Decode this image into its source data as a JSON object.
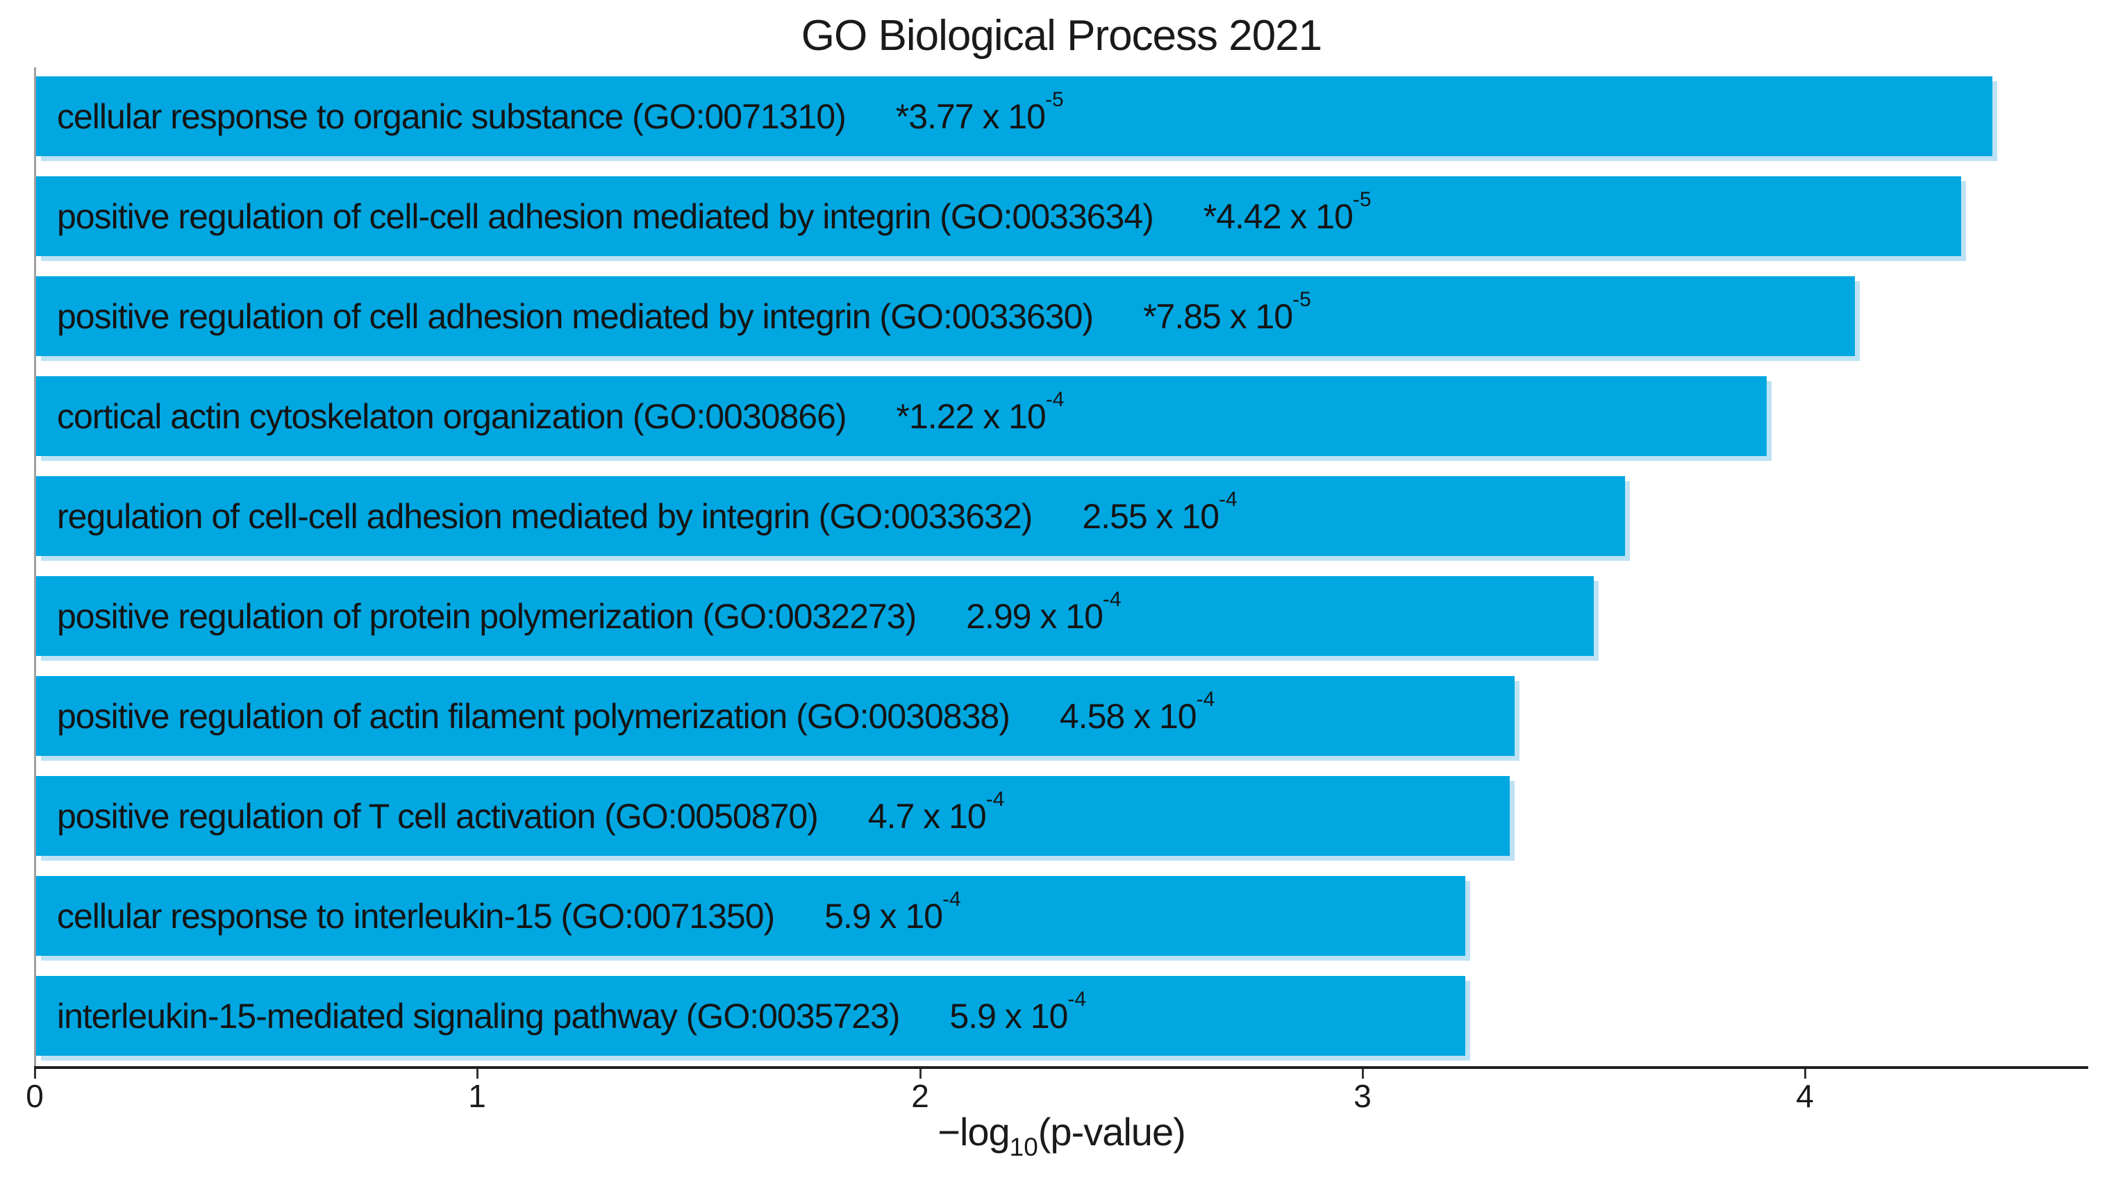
{
  "chart_data": {
    "type": "bar",
    "orientation": "horizontal",
    "title": "GO Biological Process 2021",
    "xlabel_parts": {
      "prefix": "−log",
      "sub": "10",
      "suffix": "(p-value)"
    },
    "xlabel_plain": "-log10(p-value)",
    "xlim": [
      0,
      4.64
    ],
    "xticks": [
      "0",
      "1",
      "2",
      "3",
      "4"
    ],
    "xtick_values": [
      0,
      1,
      2,
      3,
      4
    ],
    "grid": false,
    "legend": "none",
    "bar_color": "#00a7e1",
    "bar_edge_color": "#bde2f4",
    "axis_color": "#1f1f1f",
    "bars": [
      {
        "term": "cellular response to organic substance (GO:0071310)",
        "p_base": "*3.77 x 10",
        "p_exp": "-5",
        "p_display": "*3.77 x 10^-5",
        "value": 4.42
      },
      {
        "term": "positive regulation of cell-cell adhesion mediated by integrin (GO:0033634)",
        "p_base": "*4.42 x 10",
        "p_exp": "-5",
        "p_display": "*4.42 x 10^-5",
        "value": 4.35
      },
      {
        "term": "positive regulation of cell adhesion mediated by integrin (GO:0033630)",
        "p_base": "*7.85 x 10",
        "p_exp": "-5",
        "p_display": "*7.85 x 10^-5",
        "value": 4.11
      },
      {
        "term": "cortical actin cytoskelaton organization (GO:0030866)",
        "p_base": "*1.22 x 10",
        "p_exp": "-4",
        "p_display": "*1.22 x 10^-4",
        "value": 3.91
      },
      {
        "term": "regulation of cell-cell adhesion mediated by integrin (GO:0033632)",
        "p_base": "2.55 x 10",
        "p_exp": "-4",
        "p_display": "2.55 x 10^-4",
        "value": 3.59
      },
      {
        "term": "positive regulation of protein polymerization (GO:0032273)",
        "p_base": "2.99 x 10",
        "p_exp": "-4",
        "p_display": "2.99 x 10^-4",
        "value": 3.52
      },
      {
        "term": "positive regulation of actin filament polymerization (GO:0030838)",
        "p_base": "4.58 x 10",
        "p_exp": "-4",
        "p_display": "4.58 x 10^-4",
        "value": 3.34
      },
      {
        "term": "positive regulation of T cell activation (GO:0050870)",
        "p_base": "4.7 x 10",
        "p_exp": "-4",
        "p_display": "4.7 x 10^-4",
        "value": 3.33
      },
      {
        "term": "cellular response to interleukin-15 (GO:0071350)",
        "p_base": "5.9 x 10",
        "p_exp": "-4",
        "p_display": "5.9 x 10^-4",
        "value": 3.23
      },
      {
        "term": "interleukin-15-mediated signaling pathway (GO:0035723)",
        "p_base": "5.9 x 10",
        "p_exp": "-4",
        "p_display": "5.9 x 10^-4",
        "value": 3.23
      }
    ]
  }
}
